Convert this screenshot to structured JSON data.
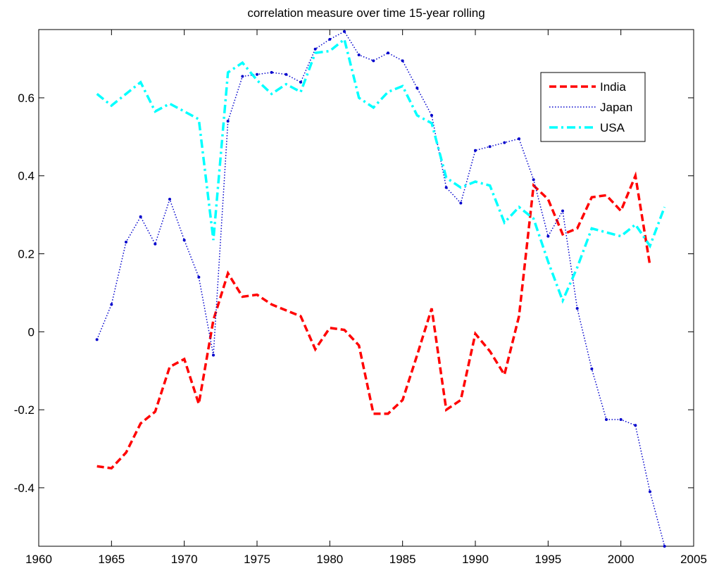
{
  "chart_data": {
    "type": "line",
    "title": "correlation measure over time 15-year rolling",
    "x": [
      1964,
      1965,
      1966,
      1967,
      1968,
      1969,
      1970,
      1971,
      1972,
      1973,
      1974,
      1975,
      1976,
      1977,
      1978,
      1979,
      1980,
      1981,
      1982,
      1983,
      1984,
      1985,
      1986,
      1987,
      1988,
      1989,
      1990,
      1991,
      1992,
      1993,
      1994,
      1995,
      1996,
      1997,
      1998,
      1999,
      2000,
      2001,
      2002,
      2003
    ],
    "series": [
      {
        "name": "India",
        "color": "#ff0000",
        "style": "dashed",
        "values": [
          -0.345,
          -0.35,
          -0.31,
          -0.235,
          -0.205,
          -0.09,
          -0.07,
          -0.185,
          0.03,
          0.15,
          0.09,
          0.095,
          0.07,
          0.055,
          0.04,
          -0.045,
          0.01,
          0.005,
          -0.035,
          -0.21,
          -0.21,
          -0.175,
          -0.06,
          0.06,
          -0.2,
          -0.175,
          -0.005,
          -0.05,
          -0.11,
          0.04,
          0.375,
          0.34,
          0.25,
          0.265,
          0.345,
          0.35,
          0.31,
          0.4,
          0.17,
          null
        ]
      },
      {
        "name": "Japan",
        "color": "#0000cc",
        "style": "dotted",
        "values": [
          -0.02,
          0.07,
          0.23,
          0.295,
          0.225,
          0.34,
          0.235,
          0.14,
          -0.06,
          0.54,
          0.655,
          0.66,
          0.665,
          0.66,
          0.64,
          0.725,
          0.75,
          0.77,
          0.71,
          0.695,
          0.715,
          0.695,
          0.625,
          0.555,
          0.37,
          0.33,
          0.465,
          0.475,
          0.485,
          0.495,
          0.39,
          0.245,
          0.31,
          0.06,
          -0.095,
          -0.225,
          -0.225,
          -0.24,
          -0.41,
          -0.55
        ]
      },
      {
        "name": "USA",
        "color": "#00ffff",
        "style": "dashdot",
        "values": [
          0.61,
          0.58,
          0.61,
          0.64,
          0.565,
          0.585,
          0.565,
          0.545,
          0.235,
          0.665,
          0.69,
          0.645,
          0.61,
          0.635,
          0.615,
          0.715,
          0.72,
          0.75,
          0.6,
          0.575,
          0.615,
          0.63,
          0.555,
          0.535,
          0.395,
          0.37,
          0.385,
          0.375,
          0.28,
          0.32,
          0.29,
          0.18,
          0.08,
          0.165,
          0.265,
          0.255,
          0.245,
          0.275,
          0.22,
          0.32
        ]
      }
    ],
    "xlim": [
      1960,
      2005
    ],
    "xticks": [
      1960,
      1965,
      1970,
      1975,
      1980,
      1985,
      1990,
      1995,
      2000,
      2005
    ],
    "ylim": [
      -0.55,
      0.775
    ],
    "yticks": [
      -0.4,
      -0.2,
      0,
      0.2,
      0.4,
      0.6
    ],
    "grid": false,
    "legend": "upper right"
  }
}
